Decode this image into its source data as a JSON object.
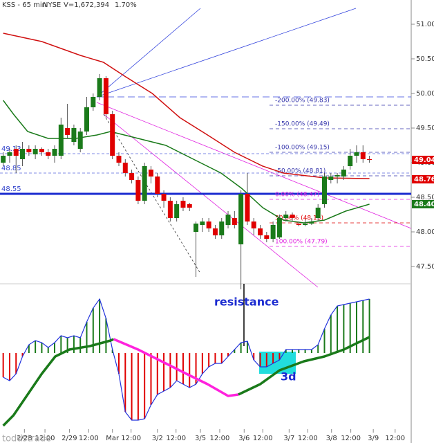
{
  "chart_data": {
    "type": "candlestick",
    "header": {
      "symbol": "KSS - 65 min",
      "exchange": "NYSE",
      "volume": "V=1,672,394",
      "change": "1.70%"
    },
    "up_color": "#1a7a1a",
    "down_color": "#e00000",
    "xlim": [
      -0.5,
      63.5
    ],
    "xticks": [
      {
        "value": 3.3,
        "label": "2/28"
      },
      {
        "value": 6.5,
        "label": "12:00"
      },
      {
        "value": 10.3,
        "label": "2/29"
      },
      {
        "value": 13.3,
        "label": "12:00"
      },
      {
        "value": 17.0,
        "label": "Mar"
      },
      {
        "value": 19.9,
        "label": "12:00"
      },
      {
        "value": 24.0,
        "label": "3/2"
      },
      {
        "value": 26.9,
        "label": "12:00"
      },
      {
        "value": 30.7,
        "label": "3/5"
      },
      {
        "value": 33.7,
        "label": "12:00"
      },
      {
        "value": 37.5,
        "label": "3/6"
      },
      {
        "value": 40.4,
        "label": "12:00"
      },
      {
        "value": 44.5,
        "label": "3/7"
      },
      {
        "value": 47.4,
        "label": "12:00"
      },
      {
        "value": 51.1,
        "label": "3/8"
      },
      {
        "value": 54.1,
        "label": "12:00"
      },
      {
        "value": 57.6,
        "label": "3/9"
      },
      {
        "value": 61.0,
        "label": "12:00"
      }
    ],
    "ylim": [
      47.25,
      51.35
    ],
    "yticks": [
      {
        "value": 51,
        "label": "51.00"
      },
      {
        "value": 50.5,
        "label": "50.50"
      },
      {
        "value": 50,
        "label": "50.00"
      },
      {
        "value": 49.5,
        "label": "49.50"
      },
      {
        "value": 49,
        "label": "49.00"
      },
      {
        "value": 48.5,
        "label": "48.50"
      },
      {
        "value": 48,
        "label": "48.00"
      },
      {
        "value": 47.5,
        "label": "47.50"
      }
    ],
    "x": [
      0,
      1,
      2,
      3,
      4,
      5,
      6,
      7,
      8,
      9,
      10,
      11,
      12,
      13,
      14,
      15,
      16,
      17,
      18,
      19,
      20,
      21,
      22,
      23,
      24,
      25,
      26,
      27,
      28,
      29,
      30,
      31,
      32,
      33,
      34,
      35,
      36,
      37,
      38,
      39,
      40,
      41,
      42,
      43,
      44,
      45,
      46,
      47,
      48,
      49,
      50,
      51,
      52,
      53,
      54,
      55,
      56,
      57
    ],
    "open": [
      49.0,
      49.1,
      49.2,
      49.05,
      49.2,
      49.12,
      49.2,
      49.15,
      49.1,
      49.1,
      49.5,
      49.3,
      49.2,
      49.45,
      49.8,
      49.95,
      50.22,
      49.7,
      49.1,
      49.0,
      48.85,
      48.75,
      48.45,
      48.9,
      48.8,
      48.55,
      48.45,
      48.2,
      48.45,
      48.4,
      48.0,
      48.1,
      48.15,
      48.05,
      47.95,
      48.1,
      48.2,
      47.82,
      48.55,
      48.15,
      48.05,
      47.95,
      47.9,
      47.92,
      48.2,
      48.25,
      48.12,
      48.1,
      48.12,
      48.2,
      48.4,
      48.75,
      48.8,
      48.8,
      48.95,
      49.1,
      49.15,
      49.05
    ],
    "high": [
      49.15,
      49.2,
      49.25,
      49.3,
      49.25,
      49.25,
      49.22,
      49.2,
      49.25,
      49.65,
      49.85,
      49.55,
      49.5,
      49.95,
      50.0,
      50.28,
      50.25,
      49.75,
      49.15,
      49.05,
      48.9,
      48.8,
      49.0,
      48.95,
      48.85,
      48.6,
      48.5,
      48.45,
      48.5,
      48.42,
      48.15,
      48.2,
      48.2,
      48.1,
      48.2,
      48.3,
      48.3,
      48.6,
      48.85,
      48.2,
      48.1,
      48.0,
      48.15,
      48.25,
      48.3,
      48.28,
      48.15,
      48.18,
      48.2,
      48.4,
      48.85,
      48.85,
      48.85,
      48.95,
      49.2,
      49.25,
      49.25,
      49.1
    ],
    "low": [
      48.95,
      49.0,
      48.85,
      48.95,
      49.1,
      49.05,
      49.1,
      49.05,
      49.0,
      49.05,
      49.35,
      49.25,
      49.15,
      49.4,
      49.75,
      49.9,
      49.65,
      49.05,
      48.95,
      48.8,
      48.7,
      48.4,
      48.4,
      48.7,
      48.5,
      48.35,
      48.15,
      48.15,
      48.3,
      48.3,
      47.35,
      48.0,
      48.0,
      47.9,
      47.9,
      48.05,
      48.05,
      47.17,
      48.1,
      47.95,
      47.9,
      47.85,
      47.85,
      47.9,
      48.15,
      48.15,
      48.08,
      48.08,
      48.1,
      48.15,
      48.35,
      48.7,
      48.7,
      48.75,
      48.9,
      49.0,
      49.0,
      49.0
    ],
    "close": [
      49.1,
      49.15,
      49.1,
      49.2,
      49.15,
      49.2,
      49.15,
      49.1,
      49.2,
      49.55,
      49.4,
      49.5,
      49.45,
      49.8,
      49.95,
      50.22,
      49.7,
      49.1,
      49.0,
      48.85,
      48.75,
      48.45,
      48.95,
      48.8,
      48.55,
      48.45,
      48.2,
      48.4,
      48.35,
      48.35,
      48.12,
      48.15,
      48.05,
      47.95,
      48.15,
      48.25,
      48.1,
      48.55,
      48.15,
      48.05,
      47.95,
      47.9,
      48.1,
      48.2,
      48.25,
      48.2,
      48.1,
      48.12,
      48.15,
      48.35,
      48.8,
      48.8,
      48.82,
      48.9,
      49.1,
      49.15,
      49.05,
      49.04
    ],
    "moving_averages": [
      {
        "color": "#d01010",
        "x": [
          0,
          6,
          12,
          15.6,
          18.9,
          23.2,
          27.5,
          31.8,
          36,
          40.4,
          43.6,
          50,
          57
        ],
        "values": [
          50.87,
          50.75,
          50.55,
          50.45,
          50.25,
          50.0,
          49.65,
          49.4,
          49.15,
          48.95,
          48.85,
          48.78,
          48.77
        ]
      },
      {
        "color": "#1a7a1a",
        "x": [
          0,
          1.6,
          3.8,
          7,
          11.3,
          14.6,
          16.7,
          21,
          25.3,
          29.6,
          33.9,
          37.1,
          40.4,
          43.6,
          46.8,
          50,
          53.3,
          57
        ],
        "values": [
          49.9,
          49.7,
          49.45,
          49.35,
          49.35,
          49.4,
          49.45,
          49.35,
          49.25,
          49.05,
          48.85,
          48.63,
          48.35,
          48.17,
          48.13,
          48.17,
          48.3,
          48.4
        ]
      }
    ],
    "levels": [
      49.13,
      48.85,
      48.55
    ],
    "fib_levels": [
      {
        "value": 49.83,
        "label": "-200.00% (49.83)",
        "color": "#3333aa"
      },
      {
        "value": 49.49,
        "label": "-150.00% (49.49)",
        "color": "#3333aa"
      },
      {
        "value": 49.15,
        "label": "-100.00% (49.15)",
        "color": "#3333aa"
      },
      {
        "value": 48.81,
        "label": "-50.00% (48.81)",
        "color": "#3333aa"
      },
      {
        "value": 48.47,
        "label": "0.00% (48.47)",
        "color": "#e020e0"
      },
      {
        "value": 48.13,
        "label": "50.00% (48.13)",
        "color": "#e00000"
      },
      {
        "value": 47.79,
        "label": "100.00% (47.79)",
        "color": "#e020e0"
      }
    ],
    "price_tags": [
      {
        "value": 49.04,
        "color": "#e00000"
      },
      {
        "value": 48.76,
        "color": "#e00000"
      },
      {
        "value": 48.4,
        "label": "48.40",
        "color": "#1a7a1a"
      }
    ],
    "annotations": {
      "resistance": "resistance",
      "days": "3d",
      "watermark": "toddstrade"
    },
    "indicator": {
      "ylim": [
        -1.3,
        1.0
      ],
      "up_color": "#1a7a1a",
      "down_color": "#e00000",
      "line_color": "#2233dd",
      "values": [
        -0.35,
        -0.4,
        -0.3,
        -0.05,
        0.12,
        0.18,
        0.15,
        0.08,
        0.15,
        0.25,
        0.22,
        0.25,
        0.22,
        0.45,
        0.65,
        0.78,
        0.5,
        0.05,
        -0.3,
        -0.85,
        -0.97,
        -0.97,
        -0.95,
        -0.75,
        -0.6,
        -0.55,
        -0.5,
        -0.4,
        -0.45,
        -0.5,
        -0.45,
        -0.3,
        -0.2,
        -0.15,
        -0.15,
        -0.05,
        0.05,
        0.15,
        0.17,
        -0.1,
        -0.2,
        -0.2,
        -0.15,
        -0.1,
        0.05,
        0.05,
        0.05,
        0.05,
        0.05,
        0.12,
        0.35,
        0.55,
        0.68,
        0.7,
        0.72,
        0.74,
        0.76,
        0.78
      ],
      "signal": [
        {
          "color": "#1a7a1a",
          "x": [
            0,
            1.6,
            3.8,
            6,
            8.1,
            10.3,
            13.5,
            16.7,
            17.2
          ],
          "values": [
            -1.05,
            -0.9,
            -0.6,
            -0.3,
            -0.05,
            0.05,
            0.1,
            0.18,
            0.2
          ]
        },
        {
          "color": "#ff22dd",
          "x": [
            17.2,
            21,
            25.3,
            28.5,
            31.8,
            35,
            36.6
          ],
          "values": [
            0.2,
            0.05,
            -0.15,
            -0.3,
            -0.45,
            -0.62,
            -0.6
          ]
        },
        {
          "color": "#1a7a1a",
          "x": [
            36.6,
            40,
            43,
            46.8,
            50,
            53,
            57
          ],
          "values": [
            -0.6,
            -0.45,
            -0.25,
            -0.12,
            -0.05,
            0.05,
            0.23
          ]
        }
      ]
    }
  }
}
